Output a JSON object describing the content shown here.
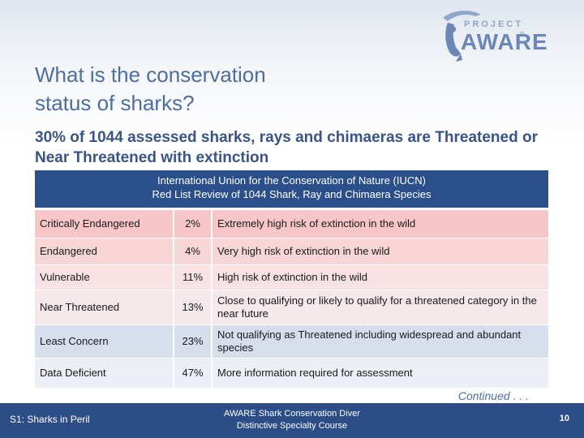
{
  "logo": {
    "project": "PROJECT",
    "aware": "AWARE",
    "tm": "®"
  },
  "title": [
    "What is the conservation",
    "status of sharks?"
  ],
  "subtitle": "30% of 1044 assessed sharks, rays and chimaeras are Threatened or Near Threatened with extinction",
  "table": {
    "header": [
      "International Union for the Conservation of Nature (IUCN)",
      "Red List Review of 1044 Shark, Ray and Chimaera Species"
    ],
    "rows": [
      {
        "status": "Critically Endangered",
        "percent": "2%",
        "description": "Extremely high risk of extinction in the wild",
        "color": "#f6c6c9"
      },
      {
        "status": "Endangered",
        "percent": "4%",
        "description": "Very high risk of extinction in the wild",
        "color": "#f8d5d7"
      },
      {
        "status": "Vulnerable",
        "percent": "11%",
        "description": "High risk of extinction in the wild",
        "color": "#f9e2e3"
      },
      {
        "status": "Near Threatened",
        "percent": "13%",
        "description": "Close to qualifying or likely to qualify for a threatened category in the near future",
        "color": "#f5e8ea"
      },
      {
        "status": "Least Concern",
        "percent": "23%",
        "description": "Not qualifying as Threatened including widespread and abundant species",
        "color": "#d7deec"
      },
      {
        "status": "Data Deficient",
        "percent": "47%",
        "description": "More information required for assessment",
        "color": "#eceff5"
      }
    ]
  },
  "continued": "Continued . . .",
  "footer": {
    "left": "S1: Sharks in Peril",
    "center": [
      "AWARE Shark Conservation Diver",
      "Distinctive Specialty Course"
    ],
    "page": "10"
  }
}
